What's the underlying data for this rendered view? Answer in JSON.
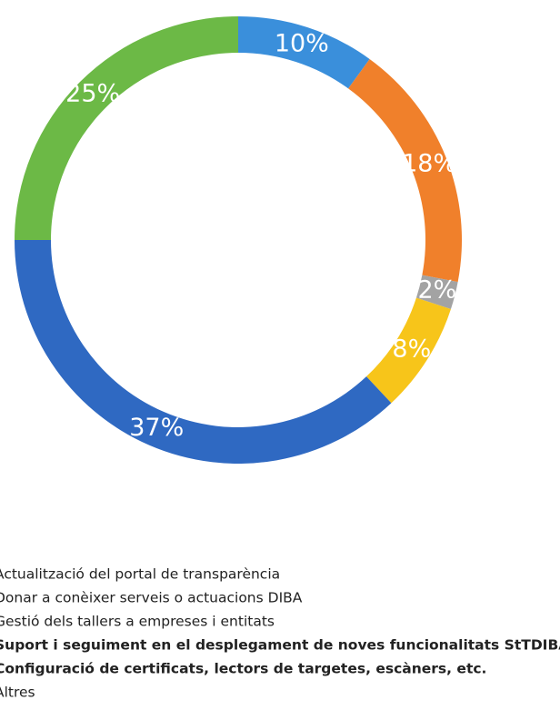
{
  "chart_data": {
    "type": "pie",
    "donut": true,
    "categories": [
      "Actualització del portal de transparència",
      "Donar a conèixer serveis o actuacions DIBA",
      "Gestió dels tallers a empreses i entitats",
      "Suport i seguiment en el desplegament de noves funcionalitats StTDIBA",
      "Configuració de certificats, lectors de targetes, escàners, etc.",
      "Altres"
    ],
    "values": [
      10,
      18,
      2,
      8,
      37,
      25
    ],
    "value_labels": [
      "10%",
      "18%",
      "2%",
      "8%",
      "37%",
      "25%"
    ],
    "colors": [
      "#3a8fdb",
      "#f0802b",
      "#a3a3a3",
      "#f7c51a",
      "#2f69c2",
      "#6cb946"
    ]
  }
}
